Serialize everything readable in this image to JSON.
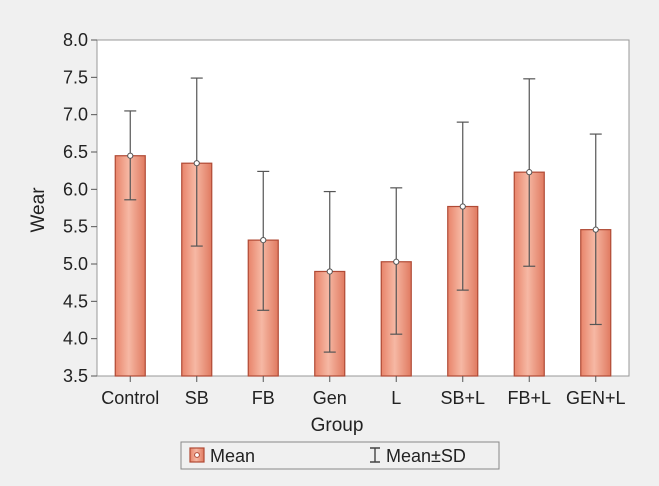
{
  "chart_data": {
    "type": "bar",
    "categories": [
      "Control",
      "SB",
      "FB",
      "Gen",
      "L",
      "SB+L",
      "FB+L",
      "GEN+L"
    ],
    "series": [
      {
        "name": "Mean",
        "values": [
          6.45,
          6.35,
          5.32,
          4.9,
          5.03,
          5.77,
          6.23,
          5.46
        ]
      }
    ],
    "error_bars": {
      "name": "Mean±SD",
      "lower": [
        5.86,
        5.24,
        4.38,
        3.82,
        4.06,
        4.65,
        4.97,
        4.19
      ],
      "upper": [
        7.05,
        7.49,
        6.24,
        5.97,
        6.02,
        6.9,
        7.48,
        6.74
      ]
    },
    "xlabel": "Group",
    "ylabel": "Wear",
    "ylim": [
      3.5,
      8.0
    ],
    "yticks": [
      "3.5",
      "4.0",
      "4.5",
      "5.0",
      "5.5",
      "6.0",
      "6.5",
      "7.0",
      "7.5",
      "8.0"
    ],
    "grid": false,
    "legend_position": "bottom",
    "colors": {
      "bar_fill": "#e8846a",
      "bar_highlight": "#f6b8a4",
      "bar_stroke": "#b04a35",
      "error_bar": "#555555",
      "background": "#f0f0f0",
      "plot_background": "#ffffff"
    }
  }
}
